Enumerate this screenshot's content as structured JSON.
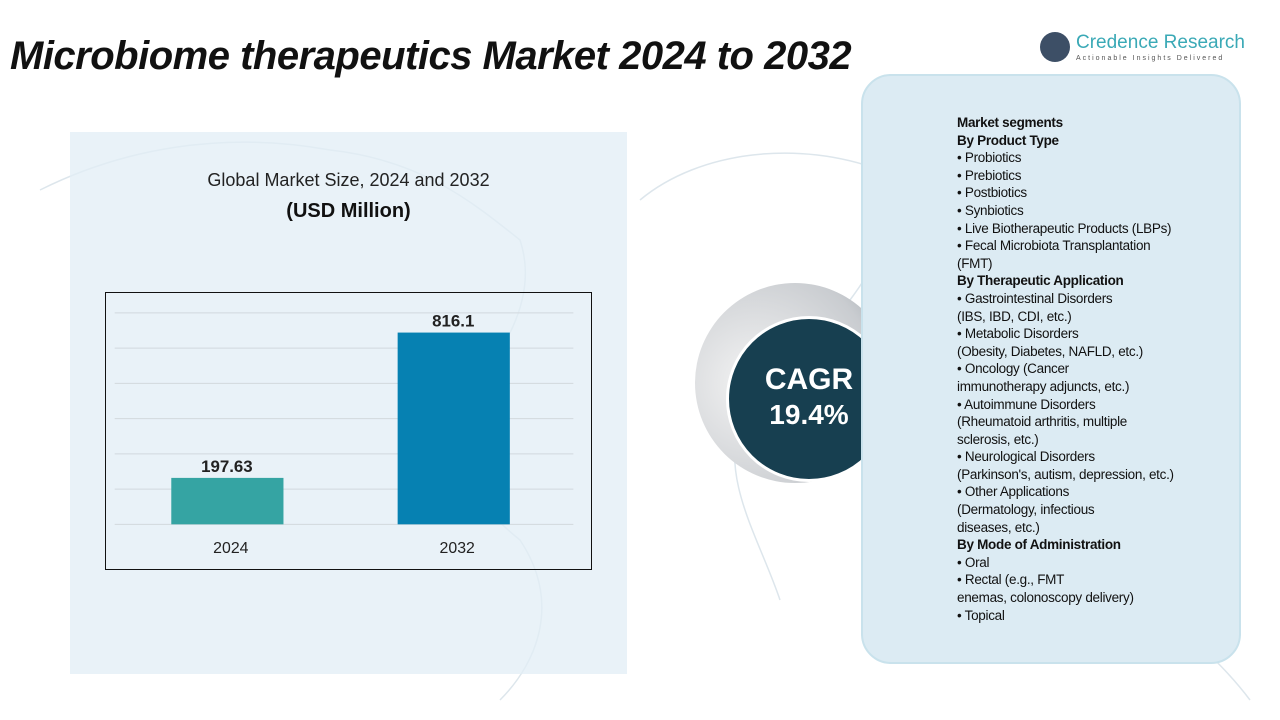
{
  "title": "Microbiome therapeutics Market 2024 to 2032",
  "logo": {
    "name": "Credence Research",
    "tagline": "Actionable Insights Delivered"
  },
  "chart_data": {
    "type": "bar",
    "title": "Global Market Size, 2024 and 2032",
    "subtitle": "(USD Million)",
    "categories": [
      "2024",
      "2032"
    ],
    "values": [
      197.63,
      816.1
    ],
    "labels": [
      "197.63",
      "816.1"
    ],
    "colors": [
      "#35a4a3",
      "#0681b2"
    ],
    "grid": true
  },
  "cagr": {
    "label": "CAGR",
    "value": "19.4%"
  },
  "segments": {
    "heading": "Market segments",
    "lines": [
      {
        "t": "By Product Type",
        "h": true
      },
      {
        "t": "•  Probiotics"
      },
      {
        "t": "•   Prebiotics"
      },
      {
        "t": "•   Postbiotics"
      },
      {
        "t": "•    Synbiotics"
      },
      {
        "t": "•   Live Biotherapeutic Products (LBPs)"
      },
      {
        "t": "•     Fecal Microbiota Transplantation"
      },
      {
        "t": "(FMT)"
      },
      {
        "t": "By Therapeutic Application",
        "h": true
      },
      {
        "t": "•     Gastrointestinal Disorders"
      },
      {
        "t": "(IBS, IBD, CDI, etc.)"
      },
      {
        "t": "•     Metabolic Disorders"
      },
      {
        "t": "(Obesity, Diabetes, NAFLD, etc.)"
      },
      {
        "t": "•     Oncology (Cancer"
      },
      {
        "t": "immunotherapy adjuncts, etc.)"
      },
      {
        "t": "•     Autoimmune Disorders"
      },
      {
        "t": "(Rheumatoid arthritis, multiple"
      },
      {
        "t": "sclerosis, etc.)"
      },
      {
        "t": "•     Neurological Disorders"
      },
      {
        "t": "(Parkinson's, autism, depression, etc.)"
      },
      {
        "t": "•     Other Applications"
      },
      {
        "t": "(Dermatology, infectious"
      },
      {
        "t": "diseases, etc.)"
      },
      {
        "t": "By Mode of Administration",
        "h": true
      },
      {
        "t": "•   Oral"
      },
      {
        "t": "•   Rectal (e.g., FMT"
      },
      {
        "t": "enemas, colonoscopy delivery)"
      },
      {
        "t": "•    Topical"
      }
    ]
  }
}
